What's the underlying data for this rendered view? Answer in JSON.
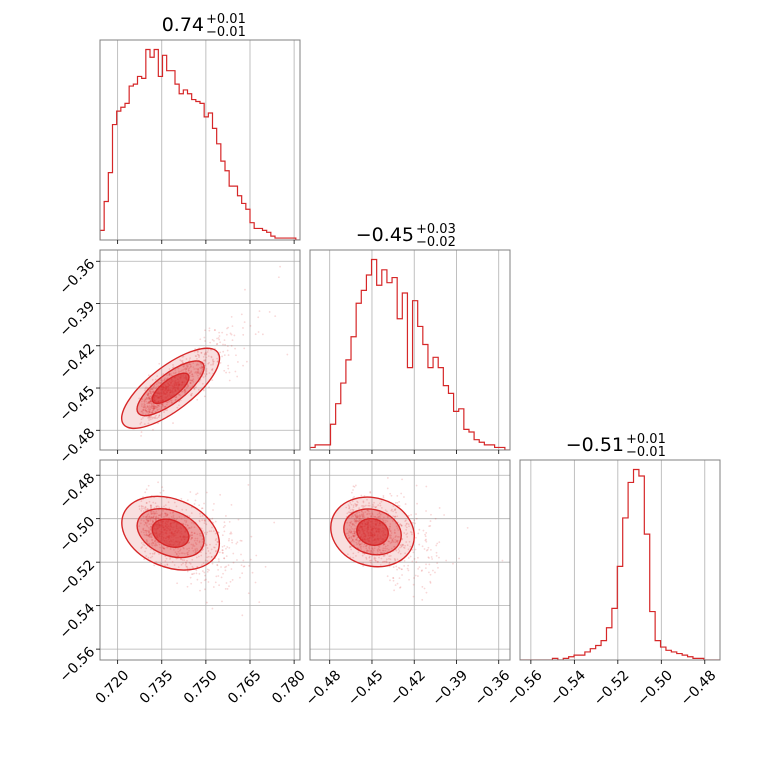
{
  "chart_data": {
    "type": "corner",
    "color": "#d62728",
    "grid": true,
    "parameters": [
      {
        "title": {
          "value": "0.74",
          "upper": "+0.01",
          "lower": "−0.01"
        },
        "range": [
          0.714,
          0.782
        ],
        "ticks": [
          0.72,
          0.735,
          0.75,
          0.765,
          0.78
        ],
        "tick_labels": [
          "0.720",
          "0.735",
          "0.750",
          "0.765",
          "0.780"
        ],
        "hist_edges_range": [
          0.714,
          0.782
        ],
        "hist_counts": [
          5,
          20,
          35,
          60,
          67,
          69,
          71,
          80,
          81,
          85,
          84,
          99,
          95,
          99,
          85,
          96,
          88,
          88,
          81,
          76,
          78,
          76,
          73,
          72,
          71,
          64,
          66,
          58,
          50,
          41,
          36,
          28,
          28,
          23,
          19,
          16,
          9,
          6,
          6,
          5,
          4,
          2,
          1,
          1,
          1,
          1,
          1,
          0
        ]
      },
      {
        "title": {
          "value": "−0.45",
          "upper": "+0.03",
          "lower": "−0.02"
        },
        "range": [
          -0.494,
          -0.352
        ],
        "ticks": [
          -0.48,
          -0.45,
          -0.42,
          -0.39,
          -0.36
        ],
        "tick_labels": [
          "−0.48",
          "−0.45",
          "−0.42",
          "−0.39",
          "−0.36"
        ],
        "hist_edges_range": [
          -0.494,
          -0.352
        ],
        "hist_counts": [
          1,
          2,
          2,
          2,
          10,
          18,
          26,
          35,
          44,
          57,
          62,
          68,
          74,
          64,
          70,
          65,
          67,
          51,
          61,
          32,
          58,
          48,
          41,
          32,
          36,
          32,
          25,
          22,
          15,
          16,
          8,
          7,
          4,
          3,
          2,
          2,
          1,
          1,
          0
        ]
      },
      {
        "title": {
          "value": "−0.51",
          "upper": "+0.01",
          "lower": "−0.01"
        },
        "range": [
          -0.565,
          -0.473
        ],
        "ticks": [
          -0.56,
          -0.54,
          -0.52,
          -0.5,
          -0.48
        ],
        "tick_labels": [
          "−0.56",
          "−0.54",
          "−0.52",
          "−0.50",
          "−0.48"
        ],
        "hist_edges_range": [
          -0.565,
          -0.473
        ],
        "hist_counts": [
          0,
          0,
          0,
          0,
          0,
          0,
          1,
          0,
          1,
          2,
          3,
          3,
          5,
          7,
          9,
          12,
          20,
          32,
          58,
          88,
          110,
          118,
          114,
          78,
          30,
          12,
          8,
          6,
          5,
          4,
          3,
          2,
          1,
          1,
          0,
          0,
          0
        ]
      }
    ],
    "correlations": {
      "1_0": {
        "slope": 1.6,
        "scatter": 0.006
      },
      "2_0": {
        "slope": -0.55,
        "scatter": 0.006
      },
      "2_1": {
        "slope": -0.2,
        "scatter": 0.006
      }
    },
    "centers": [
      0.735,
      -0.455,
      -0.505
    ],
    "spreads": [
      0.01,
      0.018,
      0.008
    ]
  }
}
